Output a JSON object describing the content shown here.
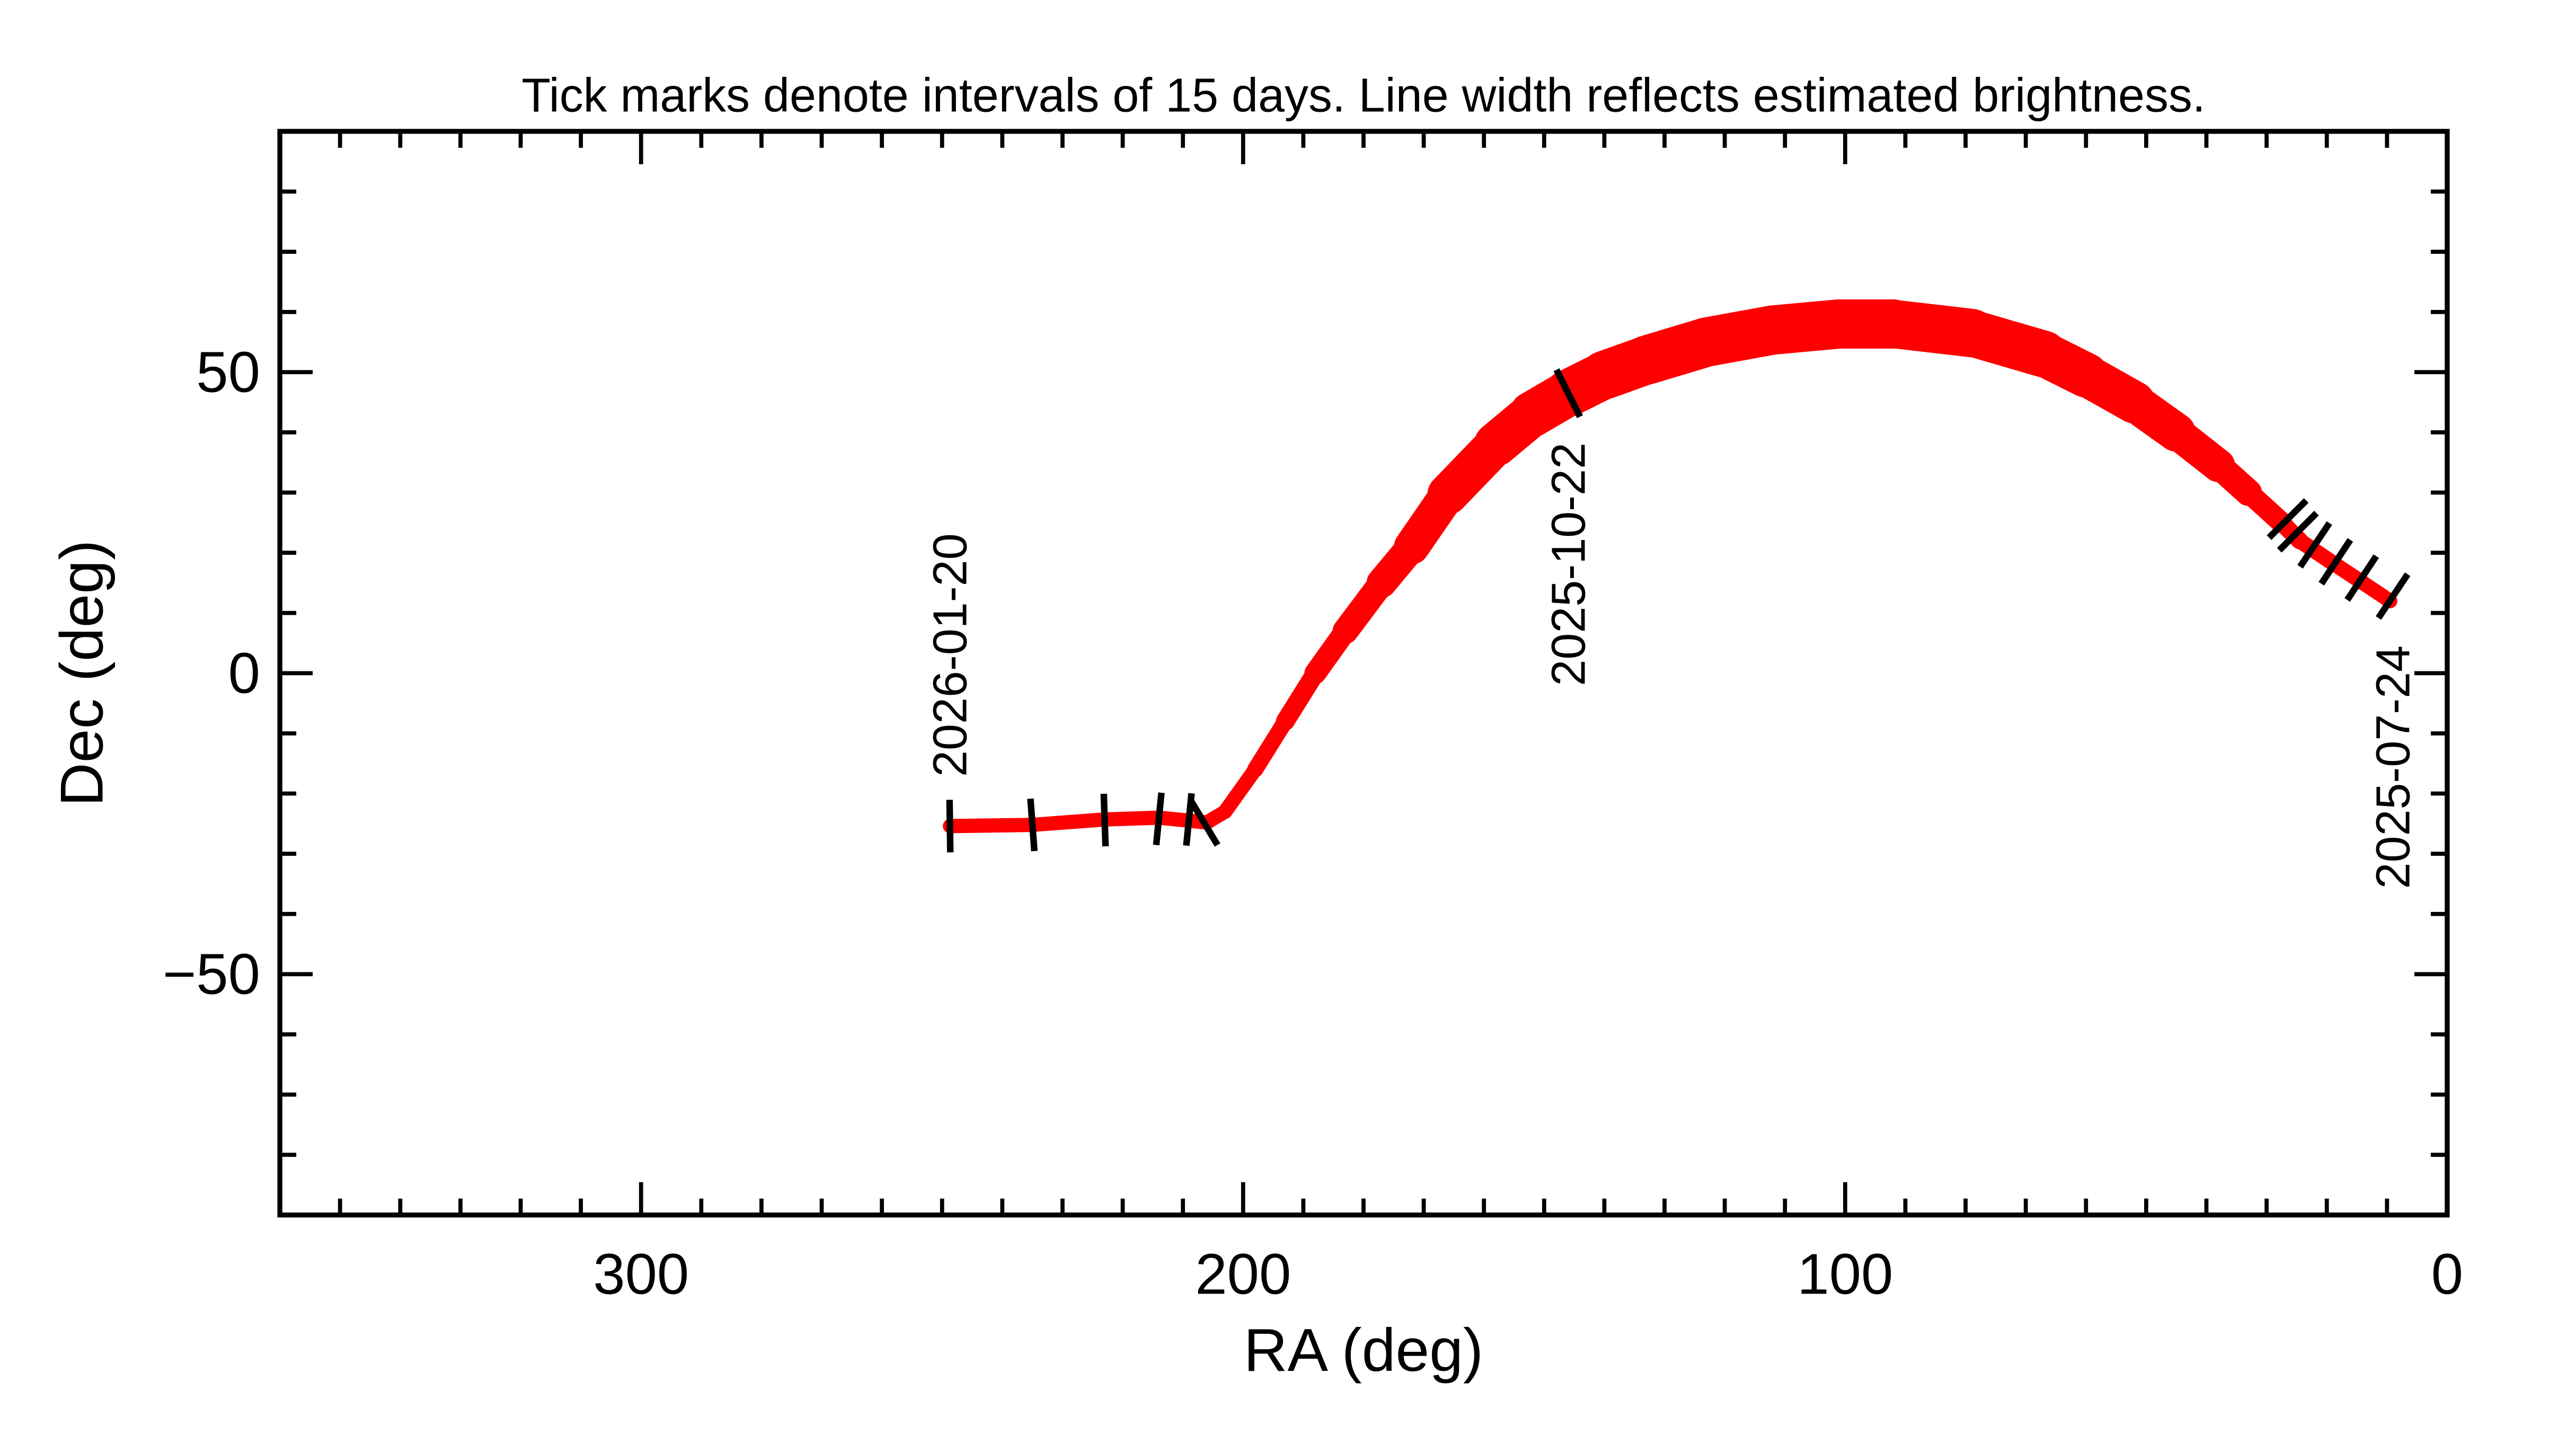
{
  "chart_data": {
    "type": "line",
    "title": "Tick marks denote intervals of 15 days.  Line width reflects estimated brightness.",
    "xlabel": "RA (deg)",
    "ylabel": "Dec (deg)",
    "xlim": [
      360,
      0
    ],
    "ylim": [
      -90,
      90
    ],
    "x_ticks": [
      300,
      200,
      100,
      0
    ],
    "x_tick_labels": [
      "300",
      "200",
      "100",
      "0"
    ],
    "y_ticks": [
      50,
      0,
      -50
    ],
    "y_tick_labels": [
      "50",
      "0",
      "−50"
    ],
    "x_minor_step": 10,
    "y_minor_step": 10,
    "grid": false,
    "line_color": "#ff0000",
    "tick_mark_color": "#000000",
    "track": [
      {
        "ra": 9.5,
        "dec": 12.0,
        "brightness": 0.18
      },
      {
        "ra": 14,
        "dec": 15.0,
        "brightness": 0.2
      },
      {
        "ra": 19,
        "dec": 18.3,
        "brightness": 0.2
      },
      {
        "ra": 24.5,
        "dec": 22.0,
        "brightness": 0.22
      },
      {
        "ra": 27.5,
        "dec": 25.0,
        "brightness": 0.28
      },
      {
        "ra": 33,
        "dec": 30.0,
        "brightness": 0.4
      },
      {
        "ra": 38,
        "dec": 34.5,
        "brightness": 0.55
      },
      {
        "ra": 45,
        "dec": 40.0,
        "brightness": 0.7
      },
      {
        "ra": 52,
        "dec": 45.0,
        "brightness": 0.8
      },
      {
        "ra": 60,
        "dec": 49.5,
        "brightness": 0.87
      },
      {
        "ra": 67,
        "dec": 53.0,
        "brightness": 0.92
      },
      {
        "ra": 79,
        "dec": 56.5,
        "brightness": 0.96
      },
      {
        "ra": 92,
        "dec": 58.0,
        "brightness": 1.0
      },
      {
        "ra": 101,
        "dec": 58.0,
        "brightness": 1.0
      },
      {
        "ra": 112,
        "dec": 57.0,
        "brightness": 1.0
      },
      {
        "ra": 123,
        "dec": 55.0,
        "brightness": 1.0
      },
      {
        "ra": 133,
        "dec": 52.0,
        "brightness": 1.0
      },
      {
        "ra": 140,
        "dec": 49.5,
        "brightness": 0.97
      },
      {
        "ra": 146,
        "dec": 46.5,
        "brightness": 0.94
      },
      {
        "ra": 152,
        "dec": 43.0,
        "brightness": 0.9
      },
      {
        "ra": 158,
        "dec": 38.0,
        "brightness": 0.85
      },
      {
        "ra": 166,
        "dec": 29.7,
        "brightness": 0.75
      },
      {
        "ra": 172,
        "dec": 21.0,
        "brightness": 0.6
      },
      {
        "ra": 177,
        "dec": 15.0,
        "brightness": 0.5
      },
      {
        "ra": 183,
        "dec": 7.0,
        "brightness": 0.4
      },
      {
        "ra": 188,
        "dec": 0.0,
        "brightness": 0.32
      },
      {
        "ra": 193,
        "dec": -8.0,
        "brightness": 0.25
      },
      {
        "ra": 198,
        "dec": -16.0,
        "brightness": 0.2
      },
      {
        "ra": 203,
        "dec": -23.0,
        "brightness": 0.18
      },
      {
        "ra": 206,
        "dec": -24.8,
        "brightness": 0.18
      },
      {
        "ra": 214,
        "dec": -24.0,
        "brightness": 0.18
      },
      {
        "ra": 223,
        "dec": -24.3,
        "brightness": 0.18
      },
      {
        "ra": 235,
        "dec": -25.2,
        "brightness": 0.18
      },
      {
        "ra": 248.7,
        "dec": -25.4,
        "brightness": 0.18
      }
    ],
    "interval_marks": [
      {
        "ra": 9.0,
        "dec": 12.8
      },
      {
        "ra": 14.2,
        "dec": 15.8
      },
      {
        "ra": 18.5,
        "dec": 18.5
      },
      {
        "ra": 22.0,
        "dec": 21.3
      },
      {
        "ra": 24.8,
        "dec": 23.5
      },
      {
        "ra": 26.5,
        "dec": 25.6
      },
      {
        "ra": 146.0,
        "dec": 46.5
      },
      {
        "ra": 206.5,
        "dec": -24.8
      },
      {
        "ra": 209.0,
        "dec": -24.3
      },
      {
        "ra": 214.0,
        "dec": -24.2
      },
      {
        "ra": 223.0,
        "dec": -24.4
      },
      {
        "ra": 235.0,
        "dec": -25.2
      },
      {
        "ra": 248.7,
        "dec": -25.4
      }
    ],
    "date_labels": [
      {
        "text": "2025-07-24",
        "ra": 9.0,
        "dec": 12.8,
        "placement": "below"
      },
      {
        "text": "2025-10-22",
        "ra": 146.0,
        "dec": 46.5,
        "placement": "below"
      },
      {
        "text": "2026-01-20",
        "ra": 248.7,
        "dec": -25.4,
        "placement": "above"
      }
    ]
  }
}
